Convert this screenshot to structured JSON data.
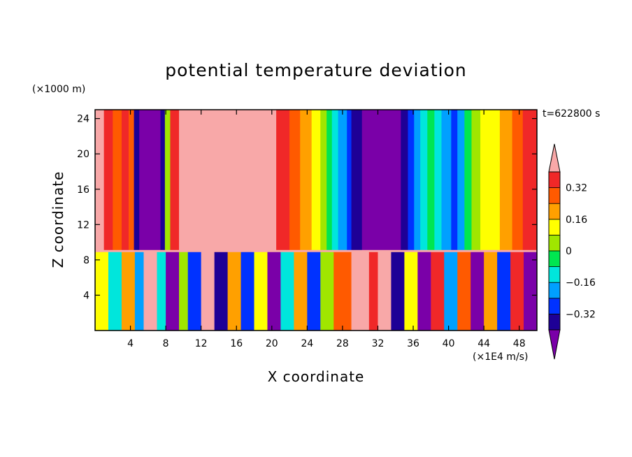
{
  "chart_data": {
    "type": "heatmap",
    "title": "potential temperature deviation",
    "xlabel": "X coordinate",
    "ylabel": "Z coordinate",
    "x_unit": "(×1E4 m/s)",
    "y_unit": "(×1000 m)",
    "time_label": "t=622800 s",
    "xlim": [
      0,
      50
    ],
    "ylim": [
      0,
      25
    ],
    "x_ticks": [
      4,
      8,
      12,
      16,
      20,
      24,
      28,
      32,
      36,
      40,
      44,
      48
    ],
    "y_ticks": [
      4,
      8,
      12,
      16,
      20,
      24
    ],
    "colorbar": {
      "levels": [
        -0.4,
        -0.32,
        -0.24,
        -0.16,
        -0.08,
        0,
        0.08,
        0.16,
        0.24,
        0.32,
        0.4
      ],
      "labeled_levels": [
        "0.32",
        "0.16",
        "0",
        "−0.16",
        "−0.32"
      ],
      "colors": [
        "#7a00a8",
        "#1e0096",
        "#0032ff",
        "#00a0ff",
        "#00e6dc",
        "#00e650",
        "#a0e600",
        "#ffff00",
        "#ffa000",
        "#ff5a00",
        "#f02828",
        "#f8a8a8"
      ],
      "extend": "both"
    },
    "upper_layer": {
      "z_range": [
        9,
        25
      ],
      "bands": [
        {
          "x0": 0.0,
          "x1": 1.0,
          "value": 0.44
        },
        {
          "x0": 1.0,
          "x1": 2.0,
          "value": 0.36
        },
        {
          "x0": 2.0,
          "x1": 3.0,
          "value": 0.3
        },
        {
          "x0": 3.0,
          "x1": 3.8,
          "value": 0.36
        },
        {
          "x0": 3.8,
          "x1": 4.4,
          "value": 0.3
        },
        {
          "x0": 4.4,
          "x1": 5.0,
          "value": -0.36
        },
        {
          "x0": 5.0,
          "x1": 7.4,
          "value": -0.44
        },
        {
          "x0": 7.4,
          "x1": 7.9,
          "value": -0.36
        },
        {
          "x0": 7.9,
          "x1": 8.5,
          "value": 0.0
        },
        {
          "x0": 8.5,
          "x1": 9.5,
          "value": 0.36
        },
        {
          "x0": 9.5,
          "x1": 10.5,
          "value": 0.44
        },
        {
          "x0": 10.5,
          "x1": 20.5,
          "value": 0.44
        },
        {
          "x0": 20.5,
          "x1": 22.0,
          "value": 0.36
        },
        {
          "x0": 22.0,
          "x1": 23.2,
          "value": 0.28
        },
        {
          "x0": 23.2,
          "x1": 24.5,
          "value": 0.2
        },
        {
          "x0": 24.5,
          "x1": 25.5,
          "value": 0.12
        },
        {
          "x0": 25.5,
          "x1": 26.2,
          "value": 0.04
        },
        {
          "x0": 26.2,
          "x1": 26.8,
          "value": -0.04
        },
        {
          "x0": 26.8,
          "x1": 27.5,
          "value": -0.12
        },
        {
          "x0": 27.5,
          "x1": 28.5,
          "value": -0.2
        },
        {
          "x0": 28.5,
          "x1": 29.0,
          "value": -0.28
        },
        {
          "x0": 29.0,
          "x1": 30.2,
          "value": -0.36
        },
        {
          "x0": 30.2,
          "x1": 34.6,
          "value": -0.44
        },
        {
          "x0": 34.6,
          "x1": 35.4,
          "value": -0.36
        },
        {
          "x0": 35.4,
          "x1": 36.1,
          "value": -0.28
        },
        {
          "x0": 36.1,
          "x1": 36.8,
          "value": -0.2
        },
        {
          "x0": 36.8,
          "x1": 37.6,
          "value": -0.12
        },
        {
          "x0": 37.6,
          "x1": 38.4,
          "value": -0.04
        },
        {
          "x0": 38.4,
          "x1": 39.2,
          "value": -0.12
        },
        {
          "x0": 39.2,
          "x1": 40.3,
          "value": -0.2
        },
        {
          "x0": 40.3,
          "x1": 41.0,
          "value": -0.28
        },
        {
          "x0": 41.0,
          "x1": 41.8,
          "value": -0.2
        },
        {
          "x0": 41.8,
          "x1": 42.6,
          "value": -0.04
        },
        {
          "x0": 42.6,
          "x1": 43.6,
          "value": 0.04
        },
        {
          "x0": 43.6,
          "x1": 45.8,
          "value": 0.12
        },
        {
          "x0": 45.8,
          "x1": 47.2,
          "value": 0.2
        },
        {
          "x0": 47.2,
          "x1": 48.4,
          "value": 0.28
        },
        {
          "x0": 48.4,
          "x1": 50.0,
          "value": 0.36
        }
      ]
    },
    "lower_layer": {
      "z_range": [
        0,
        9
      ],
      "bands": [
        {
          "x0": 0.0,
          "x1": 1.5,
          "value": 0.12
        },
        {
          "x0": 1.5,
          "x1": 3.0,
          "value": -0.12
        },
        {
          "x0": 3.0,
          "x1": 4.5,
          "value": 0.2
        },
        {
          "x0": 4.5,
          "x1": 5.5,
          "value": -0.2
        },
        {
          "x0": 5.5,
          "x1": 7.0,
          "value": 0.44
        },
        {
          "x0": 7.0,
          "x1": 8.0,
          "value": -0.12
        },
        {
          "x0": 8.0,
          "x1": 9.5,
          "value": -0.44
        },
        {
          "x0": 9.5,
          "x1": 10.5,
          "value": 0.04
        },
        {
          "x0": 10.5,
          "x1": 12.0,
          "value": -0.28
        },
        {
          "x0": 12.0,
          "x1": 13.5,
          "value": 0.44
        },
        {
          "x0": 13.5,
          "x1": 15.0,
          "value": -0.36
        },
        {
          "x0": 15.0,
          "x1": 16.5,
          "value": 0.2
        },
        {
          "x0": 16.5,
          "x1": 18.0,
          "value": -0.28
        },
        {
          "x0": 18.0,
          "x1": 19.5,
          "value": 0.12
        },
        {
          "x0": 19.5,
          "x1": 21.0,
          "value": -0.44
        },
        {
          "x0": 21.0,
          "x1": 22.5,
          "value": -0.12
        },
        {
          "x0": 22.5,
          "x1": 24.0,
          "value": 0.2
        },
        {
          "x0": 24.0,
          "x1": 25.5,
          "value": -0.28
        },
        {
          "x0": 25.5,
          "x1": 27.0,
          "value": 0.04
        },
        {
          "x0": 27.0,
          "x1": 29.0,
          "value": 0.28
        },
        {
          "x0": 29.0,
          "x1": 31.0,
          "value": 0.44
        },
        {
          "x0": 31.0,
          "x1": 32.0,
          "value": 0.36
        },
        {
          "x0": 32.0,
          "x1": 33.5,
          "value": 0.44
        },
        {
          "x0": 33.5,
          "x1": 35.0,
          "value": -0.36
        },
        {
          "x0": 35.0,
          "x1": 36.5,
          "value": 0.12
        },
        {
          "x0": 36.5,
          "x1": 38.0,
          "value": -0.44
        },
        {
          "x0": 38.0,
          "x1": 39.5,
          "value": 0.36
        },
        {
          "x0": 39.5,
          "x1": 41.0,
          "value": -0.2
        },
        {
          "x0": 41.0,
          "x1": 42.5,
          "value": 0.28
        },
        {
          "x0": 42.5,
          "x1": 44.0,
          "value": -0.44
        },
        {
          "x0": 44.0,
          "x1": 45.5,
          "value": 0.2
        },
        {
          "x0": 45.5,
          "x1": 47.0,
          "value": -0.28
        },
        {
          "x0": 47.0,
          "x1": 48.5,
          "value": 0.36
        },
        {
          "x0": 48.5,
          "x1": 50.0,
          "value": -0.44
        }
      ]
    }
  }
}
